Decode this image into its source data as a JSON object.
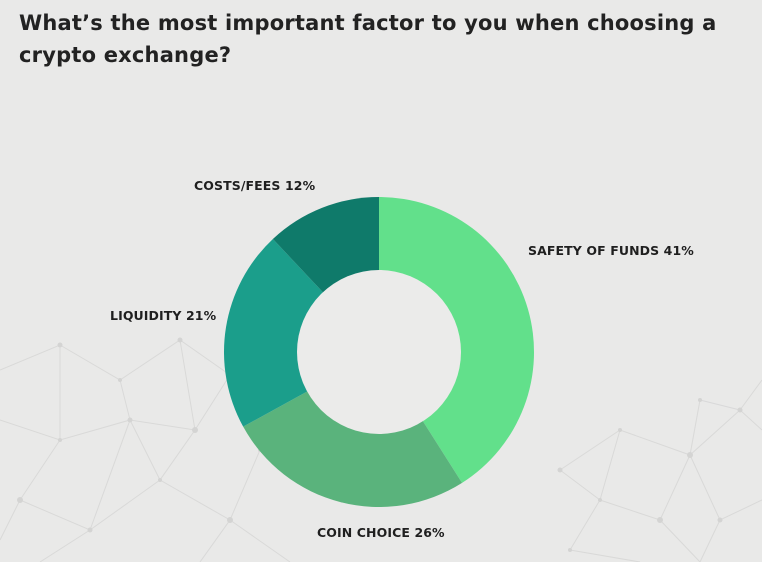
{
  "question": "What’s the most important factor to you when choosing a crypto exchange?",
  "colors": {
    "background": "#e9e9e8",
    "safety": "#62e08b",
    "coin_choice": "#5ab37c",
    "liquidity": "#1b9e8b",
    "costs_fees": "#0f7a6a",
    "hole": "#ebebea"
  },
  "chart_data": {
    "type": "pie",
    "style": "donut",
    "title": "What’s the most important factor to you when choosing a crypto exchange?",
    "slices": [
      {
        "label": "SAFETY OF FUNDS",
        "value": 41,
        "text": "SAFETY OF FUNDS 41%",
        "color": "#62e08b"
      },
      {
        "label": "COIN CHOICE",
        "value": 26,
        "text": "COIN CHOICE 26%",
        "color": "#5ab37c"
      },
      {
        "label": "LIQUIDITY",
        "value": 21,
        "text": "LIQUIDITY 21%",
        "color": "#1b9e8b"
      },
      {
        "label": "COSTS/FEES",
        "value": 12,
        "text": "COSTS/FEES 12%",
        "color": "#0f7a6a"
      }
    ],
    "start_position": "top",
    "direction": "clockwise",
    "legend": "none"
  }
}
